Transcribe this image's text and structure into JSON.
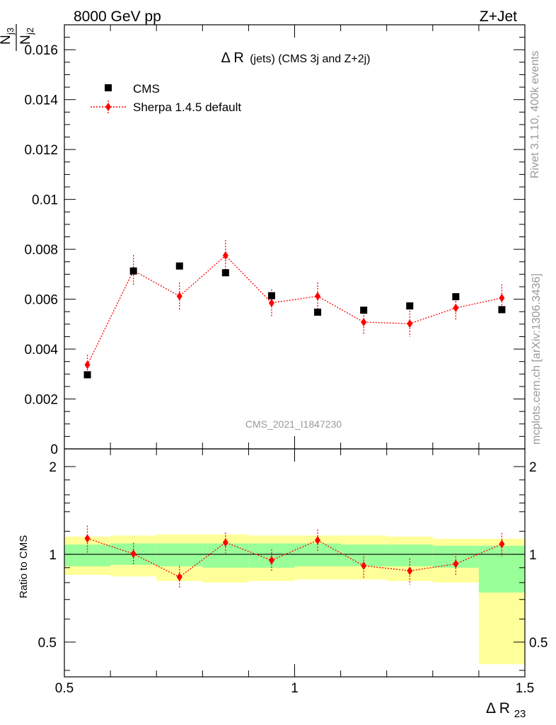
{
  "header": {
    "left": "8000 GeV pp",
    "right": "Z+Jet"
  },
  "side": {
    "rivet": "Rivet 3.1.10,  400k events",
    "mcplots": "mcplots.cern.ch [arXiv:1306.3436]"
  },
  "chart_data": {
    "type": "scatter",
    "title": "Δ R (jets) (CMS 3j and Z+2j)",
    "title_main": "Δ R",
    "title_paren": "(jets) (CMS 3j and Z+2j)",
    "analysis_id": "CMS_2021_I1847230",
    "xlabel_main": "Δ R",
    "xlabel_sub": "23",
    "ylabel_num": "N",
    "ylabel_num_sub": "j3",
    "ylabel_den": "N",
    "ylabel_den_sub": "j2",
    "ratio_ylabel": "Ratio to CMS",
    "xlim": [
      0.5,
      1.5
    ],
    "main_ylim": [
      0,
      0.017
    ],
    "ratio_ylim": [
      0.38,
      2.3
    ],
    "x_ticks": [
      0.5,
      1,
      1.5
    ],
    "x_tick_labels": [
      "0.5",
      "1",
      "1.5"
    ],
    "main_y_ticks": [
      0,
      0.002,
      0.004,
      0.006,
      0.008,
      0.01,
      0.012,
      0.014,
      0.016
    ],
    "main_y_tick_labels": [
      "0",
      "0.002",
      "0.004",
      "0.006",
      "0.008",
      "0.01",
      "0.012",
      "0.014",
      "0.016"
    ],
    "ratio_y_ticks": [
      0.5,
      1,
      2
    ],
    "ratio_y_tick_labels": [
      "0.5",
      "1",
      "2"
    ],
    "legend_position": "top-left",
    "bin_edges": [
      0.5,
      0.6,
      0.7,
      0.8,
      0.9,
      1.0,
      1.1,
      1.2,
      1.3,
      1.4,
      1.5
    ],
    "x": [
      0.55,
      0.65,
      0.75,
      0.85,
      0.95,
      1.05,
      1.15,
      1.25,
      1.35,
      1.45
    ],
    "series": [
      {
        "name": "CMS",
        "color": "#000000",
        "marker": "square",
        "values": [
          0.00297,
          0.00713,
          0.00733,
          0.00706,
          0.00614,
          0.00548,
          0.00556,
          0.00573,
          0.0061,
          0.00558
        ]
      },
      {
        "name": "Sherpa 1.4.5 default",
        "color": "#ff0000",
        "marker": "diamond",
        "linestyle": "dotted",
        "values": [
          0.00337,
          0.00715,
          0.00612,
          0.00775,
          0.00585,
          0.00612,
          0.00508,
          0.00502,
          0.00565,
          0.00605
        ],
        "errors": [
          0.0004,
          0.00062,
          0.00055,
          0.00062,
          0.00055,
          0.00055,
          0.0005,
          0.00052,
          0.0005,
          0.00055
        ]
      }
    ],
    "ratio": {
      "values": [
        1.134,
        1.004,
        0.836,
        1.098,
        0.954,
        1.117,
        0.914,
        0.878,
        0.927,
        1.085
      ],
      "errors": [
        0.12,
        0.09,
        0.075,
        0.09,
        0.085,
        0.1,
        0.09,
        0.09,
        0.08,
        0.1
      ],
      "band_inner_low": [
        0.91,
        0.92,
        0.91,
        0.9,
        0.9,
        0.91,
        0.91,
        0.91,
        0.9,
        0.74
      ],
      "band_inner_high": [
        1.08,
        1.09,
        1.09,
        1.09,
        1.09,
        1.09,
        1.08,
        1.08,
        1.07,
        1.07
      ],
      "band_outer_low": [
        0.85,
        0.84,
        0.81,
        0.8,
        0.81,
        0.82,
        0.82,
        0.81,
        0.8,
        0.42
      ],
      "band_outer_high": [
        1.15,
        1.16,
        1.17,
        1.17,
        1.16,
        1.16,
        1.16,
        1.15,
        1.13,
        1.13
      ]
    }
  }
}
